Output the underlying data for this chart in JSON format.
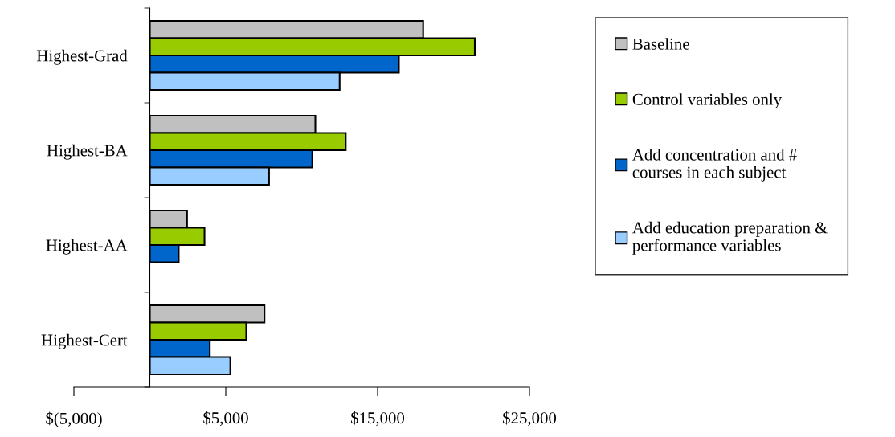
{
  "chart_data": {
    "type": "bar",
    "orientation": "horizontal",
    "categories": [
      "Highest-Grad",
      "Highest-BA",
      "Highest-AA",
      "Highest-Cert"
    ],
    "series": [
      {
        "name": "Baseline",
        "color": "#c0c0c0",
        "values": [
          18000,
          10900,
          2450,
          7550
        ]
      },
      {
        "name": "Control variables only",
        "color": "#99cc00",
        "values": [
          21400,
          12900,
          3600,
          6350
        ]
      },
      {
        "name": "Add concentration and #\ncourses in each subject",
        "color": "#0066cc",
        "values": [
          16400,
          10700,
          1900,
          3950
        ]
      },
      {
        "name": "Add education preparation &\nperformance variables",
        "color": "#99ccff",
        "values": [
          12500,
          7850,
          null,
          5300
        ]
      }
    ],
    "xlim": [
      -5000,
      25000
    ],
    "xticks": [
      {
        "value": -5000,
        "label": "$(5,000)"
      },
      {
        "value": 5000,
        "label": "$5,000"
      },
      {
        "value": 15000,
        "label": "$15,000"
      },
      {
        "value": 25000,
        "label": "$25,000"
      }
    ],
    "grid": false,
    "legend": "right"
  }
}
